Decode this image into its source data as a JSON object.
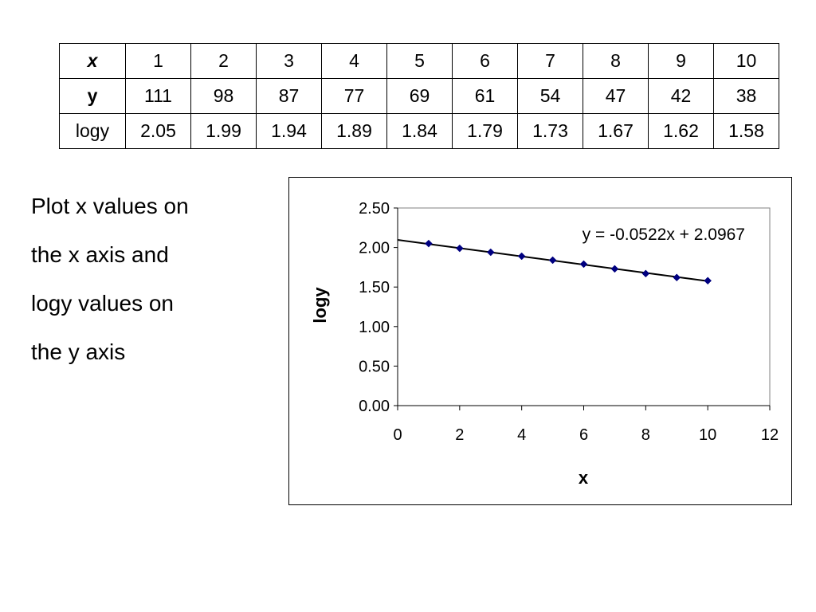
{
  "table": {
    "rows": [
      {
        "head": "x",
        "values": [
          "1",
          "2",
          "3",
          "4",
          "5",
          "6",
          "7",
          "8",
          "9",
          "10"
        ]
      },
      {
        "head": "y",
        "values": [
          "111",
          "98",
          "87",
          "77",
          "69",
          "61",
          "54",
          "47",
          "42",
          "38"
        ]
      },
      {
        "head": "logy",
        "values": [
          "2.05",
          "1.99",
          "1.94",
          "1.89",
          "1.84",
          "1.79",
          "1.73",
          "1.67",
          "1.62",
          "1.58"
        ]
      }
    ]
  },
  "instruction": {
    "lines": [
      "Plot x values on",
      "the x axis and",
      "logy values on",
      "the y axis"
    ]
  },
  "chart_data": {
    "type": "scatter",
    "title": "",
    "xlabel": "x",
    "ylabel": "logy",
    "xlim": [
      0,
      12
    ],
    "ylim": [
      0,
      2.5
    ],
    "xticks": [
      "0",
      "2",
      "4",
      "6",
      "8",
      "10",
      "12"
    ],
    "yticks": [
      "0.00",
      "0.50",
      "1.00",
      "1.50",
      "2.00",
      "2.50"
    ],
    "grid": false,
    "legend": "none",
    "marker_color": "#000080",
    "series": [
      {
        "x": [
          1,
          2,
          3,
          4,
          5,
          6,
          7,
          8,
          9,
          10
        ],
        "y": [
          2.05,
          1.99,
          1.94,
          1.89,
          1.84,
          1.79,
          1.73,
          1.67,
          1.62,
          1.58
        ]
      }
    ],
    "trendline": {
      "slope": -0.0522,
      "intercept": 2.0967,
      "x_range": [
        0,
        10
      ],
      "equation": "y = -0.0522x + 2.0967"
    }
  }
}
